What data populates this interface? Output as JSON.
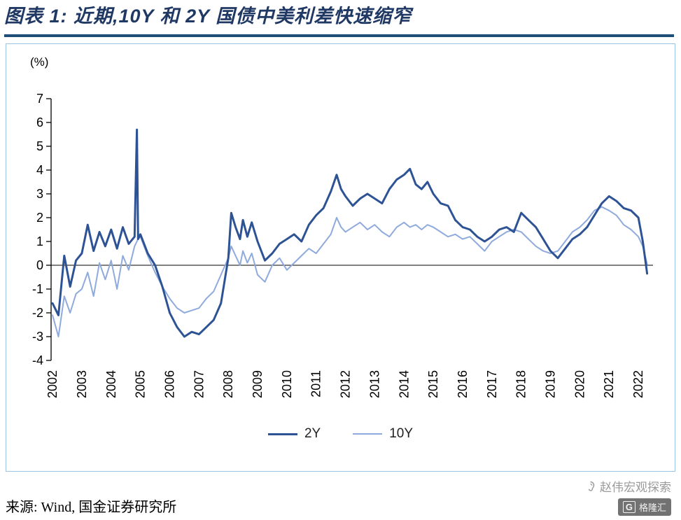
{
  "header": {
    "title": "图表 1:  近期,10Y 和 2Y 国债中美利差快速缩窄"
  },
  "colors": {
    "title": "#1F3864",
    "title_rule": "#1F4E79",
    "chart_border": "#9DC3E6",
    "axis": "#000000",
    "series_2y": "#2E5395",
    "series_10y": "#8FAADC"
  },
  "chart_data": {
    "type": "line",
    "title": "近期,10Y 和 2Y 国债中美利差快速缩窄",
    "y_axis_label": "(%)",
    "xlabel": "",
    "ylabel": "(%)",
    "ylim": [
      -4,
      7
    ],
    "ytick_step": 1,
    "xlim": [
      2001.95,
      2022.5
    ],
    "grid": false,
    "legend_position": "bottom",
    "x_ticks": [
      2002,
      2003,
      2004,
      2005,
      2006,
      2007,
      2008,
      2009,
      2010,
      2011,
      2012,
      2013,
      2014,
      2015,
      2016,
      2017,
      2018,
      2019,
      2020,
      2021,
      2022
    ],
    "x": [
      2002.0,
      2002.2,
      2002.4,
      2002.6,
      2002.8,
      2003.0,
      2003.2,
      2003.4,
      2003.6,
      2003.8,
      2004.0,
      2004.2,
      2004.4,
      2004.6,
      2004.8,
      2004.88,
      2004.92,
      2005.0,
      2005.25,
      2005.5,
      2005.75,
      2006.0,
      2006.25,
      2006.5,
      2006.75,
      2007.0,
      2007.25,
      2007.5,
      2007.75,
      2008.0,
      2008.1,
      2008.25,
      2008.4,
      2008.5,
      2008.65,
      2008.8,
      2009.0,
      2009.25,
      2009.5,
      2009.75,
      2010.0,
      2010.25,
      2010.5,
      2010.75,
      2011.0,
      2011.25,
      2011.5,
      2011.7,
      2011.85,
      2012.0,
      2012.25,
      2012.5,
      2012.75,
      2013.0,
      2013.25,
      2013.5,
      2013.75,
      2014.0,
      2014.2,
      2014.4,
      2014.6,
      2014.8,
      2015.0,
      2015.25,
      2015.5,
      2015.75,
      2016.0,
      2016.25,
      2016.5,
      2016.75,
      2017.0,
      2017.25,
      2017.5,
      2017.75,
      2018.0,
      2018.25,
      2018.5,
      2018.75,
      2019.0,
      2019.25,
      2019.5,
      2019.75,
      2020.0,
      2020.25,
      2020.5,
      2020.75,
      2021.0,
      2021.25,
      2021.5,
      2021.75,
      2022.0,
      2022.15,
      2022.3
    ],
    "series": [
      {
        "name": "2Y",
        "color": "#2E5395",
        "width": 3,
        "values": [
          -1.6,
          -2.1,
          0.4,
          -0.9,
          0.2,
          0.5,
          1.7,
          0.6,
          1.4,
          0.8,
          1.5,
          0.7,
          1.6,
          0.9,
          1.2,
          5.7,
          1.1,
          1.3,
          0.5,
          0.0,
          -0.9,
          -2.0,
          -2.6,
          -3.0,
          -2.8,
          -2.9,
          -2.6,
          -2.3,
          -1.6,
          0.3,
          2.2,
          1.6,
          1.1,
          1.9,
          1.2,
          1.8,
          1.0,
          0.2,
          0.5,
          0.9,
          1.1,
          1.3,
          1.0,
          1.7,
          2.1,
          2.4,
          3.1,
          3.8,
          3.2,
          2.9,
          2.5,
          2.8,
          3.0,
          2.8,
          2.6,
          3.2,
          3.6,
          3.8,
          4.05,
          3.4,
          3.2,
          3.5,
          3.0,
          2.6,
          2.5,
          1.9,
          1.6,
          1.5,
          1.2,
          1.0,
          1.2,
          1.5,
          1.6,
          1.4,
          2.2,
          1.9,
          1.6,
          1.1,
          0.6,
          0.3,
          0.7,
          1.1,
          1.3,
          1.6,
          2.1,
          2.6,
          2.9,
          2.7,
          2.4,
          2.3,
          2.0,
          1.0,
          -0.35
        ]
      },
      {
        "name": "10Y",
        "color": "#8FAADC",
        "width": 2,
        "values": [
          -2.1,
          -3.0,
          -1.3,
          -2.0,
          -1.2,
          -1.0,
          -0.3,
          -1.3,
          0.1,
          -0.6,
          0.2,
          -1.0,
          0.4,
          -0.2,
          0.8,
          1.0,
          1.1,
          1.2,
          0.4,
          -0.3,
          -0.9,
          -1.4,
          -1.8,
          -2.0,
          -1.9,
          -1.8,
          -1.4,
          -1.1,
          -0.4,
          0.3,
          0.8,
          0.4,
          0.0,
          0.6,
          0.1,
          0.5,
          -0.4,
          -0.7,
          0.0,
          0.3,
          -0.2,
          0.1,
          0.4,
          0.7,
          0.5,
          0.9,
          1.3,
          2.0,
          1.6,
          1.4,
          1.6,
          1.8,
          1.5,
          1.7,
          1.4,
          1.2,
          1.6,
          1.8,
          1.6,
          1.7,
          1.5,
          1.7,
          1.6,
          1.4,
          1.2,
          1.3,
          1.1,
          1.2,
          0.9,
          0.6,
          1.0,
          1.2,
          1.4,
          1.5,
          1.4,
          1.1,
          0.8,
          0.6,
          0.5,
          0.6,
          1.0,
          1.4,
          1.6,
          1.9,
          2.3,
          2.45,
          2.3,
          2.1,
          1.7,
          1.5,
          1.2,
          0.8,
          0.05
        ]
      }
    ]
  },
  "footer": {
    "source": "来源: Wind, 国金证券研究所"
  },
  "watermark": {
    "text": "赵伟宏观探索",
    "logo_g": "G",
    "logo_text": "格隆汇"
  }
}
